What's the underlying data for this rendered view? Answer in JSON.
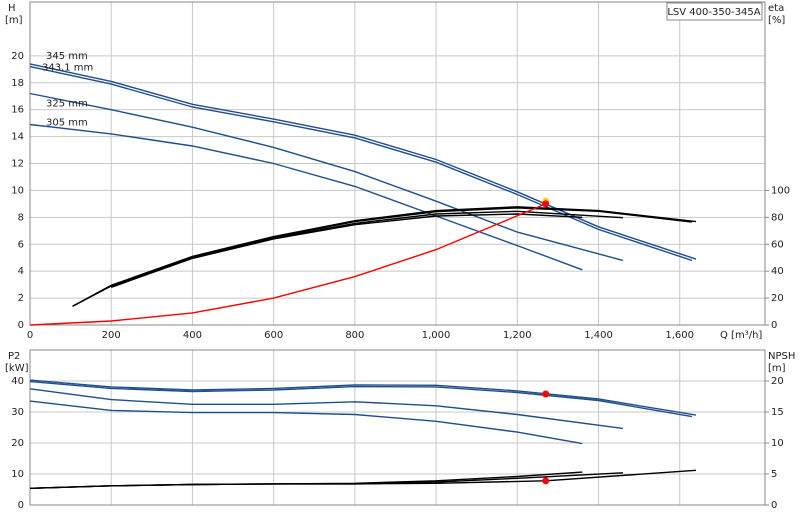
{
  "chart_data": [
    {
      "type": "line",
      "annotation": "LSV 400-350-345A",
      "y_label": "H",
      "y_unit": "[m]",
      "y2_label": "eta",
      "y2_unit": "[%]",
      "x_label": "Q [m³/h]",
      "xlim": [
        0,
        1810
      ],
      "ylim": [
        0,
        24
      ],
      "y2lim": [
        0,
        240
      ],
      "grid": true,
      "xticks": [
        0,
        200,
        400,
        600,
        800,
        {
          "value": 1000,
          "label": "1,000"
        },
        {
          "value": 1200,
          "label": "1,200"
        },
        {
          "value": 1400,
          "label": "1,400"
        },
        {
          "value": 1600,
          "label": "1,600"
        }
      ],
      "yticks": [
        0,
        2,
        4,
        6,
        8,
        10,
        12,
        14,
        16,
        18,
        20
      ],
      "y2ticks": [
        0,
        20,
        40,
        60,
        80,
        100
      ],
      "series": [
        {
          "name": "345 mm",
          "color": "#1f4e8c",
          "x": [
            0,
            200,
            400,
            600,
            800,
            1000,
            1200,
            1400,
            1640
          ],
          "values": [
            19.4,
            18.1,
            16.4,
            15.3,
            14.1,
            12.3,
            9.9,
            7.3,
            4.9
          ]
        },
        {
          "name": "343.1 mm",
          "color": "#1f4e8c",
          "x": [
            0,
            200,
            400,
            600,
            800,
            1000,
            1200,
            1400,
            1630
          ],
          "values": [
            19.2,
            17.9,
            16.2,
            15.1,
            13.9,
            12.1,
            9.7,
            7.1,
            4.8
          ]
        },
        {
          "name": "325 mm",
          "color": "#1f4e8c",
          "x": [
            0,
            200,
            400,
            600,
            800,
            1000,
            1200,
            1460
          ],
          "values": [
            17.2,
            16.0,
            14.7,
            13.2,
            11.4,
            9.2,
            6.9,
            4.8
          ]
        },
        {
          "name": "305 mm",
          "color": "#1f4e8c",
          "x": [
            0,
            200,
            400,
            600,
            800,
            1000,
            1200,
            1360
          ],
          "values": [
            14.9,
            14.2,
            13.3,
            12.0,
            10.3,
            8.1,
            5.9,
            4.1
          ]
        },
        {
          "color": "#000000",
          "axis": "y2",
          "x": [
            105,
            200,
            400,
            600,
            800,
            1000,
            1200,
            1400,
            1640
          ],
          "values": [
            14,
            29.5,
            51,
            65.7,
            77.5,
            85,
            87.8,
            85,
            76.8
          ]
        },
        {
          "color": "#000000",
          "axis": "y2",
          "x": [
            105,
            200,
            400,
            600,
            800,
            1000,
            1200,
            1400,
            1630
          ],
          "values": [
            14,
            29,
            50.5,
            65,
            76.8,
            84.2,
            87,
            84.5,
            76.5
          ]
        },
        {
          "color": "#000000",
          "axis": "y2",
          "x": [
            200,
            400,
            600,
            800,
            1000,
            1200,
            1460
          ],
          "values": [
            28.5,
            50,
            64.5,
            75.5,
            82.5,
            84.5,
            79.7
          ]
        },
        {
          "color": "#000000",
          "axis": "y2",
          "x": [
            200,
            400,
            600,
            800,
            1000,
            1200,
            1360
          ],
          "values": [
            28,
            49.5,
            64,
            74.5,
            81,
            82.5,
            80
          ]
        },
        {
          "color": "#ff0000",
          "x": [
            0,
            200,
            400,
            600,
            800,
            1000,
            1270
          ],
          "values": [
            0,
            0.3,
            0.9,
            2.0,
            3.6,
            5.6,
            9.0
          ]
        },
        {
          "color": "#f5d400",
          "marker": true,
          "x": [
            1270
          ],
          "values": [
            9.2
          ]
        },
        {
          "color": "#ff0000",
          "marker": true,
          "x": [
            1270
          ],
          "values": [
            9.0
          ]
        }
      ]
    },
    {
      "type": "line",
      "y_label": "P2",
      "y_unit": "[kW]",
      "y2_label": "NPSH",
      "y2_unit": "[m]",
      "xlim": [
        0,
        1810
      ],
      "ylim": [
        0,
        50
      ],
      "y2lim": [
        0,
        25
      ],
      "grid": true,
      "xticks": [
        0,
        200,
        400,
        600,
        800,
        1000,
        1200,
        1400,
        1600
      ],
      "yticks": [
        0,
        10,
        20,
        30,
        40
      ],
      "y2ticks": [
        0,
        5,
        10,
        15,
        20
      ],
      "series": [
        {
          "color": "#1f4e8c",
          "x": [
            0,
            200,
            400,
            600,
            800,
            1000,
            1200,
            1400,
            1640
          ],
          "values": [
            40.3,
            38.1,
            37.1,
            37.6,
            38.7,
            38.6,
            36.8,
            34.2,
            29
          ]
        },
        {
          "color": "#1f4e8c",
          "x": [
            0,
            200,
            400,
            600,
            800,
            1000,
            1200,
            1400,
            1630
          ],
          "values": [
            39.8,
            37.6,
            36.6,
            37.1,
            38.2,
            38.1,
            36.3,
            33.7,
            28.5
          ]
        },
        {
          "color": "#1f4e8c",
          "x": [
            0,
            200,
            400,
            600,
            800,
            1000,
            1200,
            1460
          ],
          "values": [
            37.5,
            34,
            32.5,
            32.5,
            33.3,
            32,
            29.2,
            24.7
          ]
        },
        {
          "color": "#1f4e8c",
          "x": [
            0,
            200,
            400,
            600,
            800,
            1000,
            1200,
            1360
          ],
          "values": [
            33.5,
            30.5,
            29.8,
            29.8,
            29.2,
            27,
            23.5,
            19.8
          ]
        },
        {
          "color": "#000000",
          "axis": "y2",
          "x": [
            0,
            200,
            400,
            600,
            800,
            1000,
            1270,
            1640
          ],
          "values": [
            2.7,
            3.1,
            3.3,
            3.4,
            3.4,
            3.5,
            3.9,
            5.6
          ]
        },
        {
          "color": "#000000",
          "axis": "y2",
          "x": [
            0,
            200,
            400,
            600,
            800,
            1000,
            1200,
            1460
          ],
          "values": [
            2.7,
            3.1,
            3.3,
            3.4,
            3.4,
            3.7,
            4.3,
            5.2
          ]
        },
        {
          "color": "#000000",
          "axis": "y2",
          "x": [
            0,
            200,
            400,
            600,
            800,
            1000,
            1200,
            1360
          ],
          "values": [
            2.7,
            3.1,
            3.3,
            3.4,
            3.5,
            3.9,
            4.6,
            5.3
          ]
        },
        {
          "color": "#ff0000",
          "marker": true,
          "x": [
            1270
          ],
          "values": [
            35.8
          ]
        },
        {
          "color": "#ff0000",
          "marker": true,
          "axis": "y2",
          "x": [
            1270
          ],
          "values": [
            3.9
          ]
        }
      ]
    }
  ]
}
